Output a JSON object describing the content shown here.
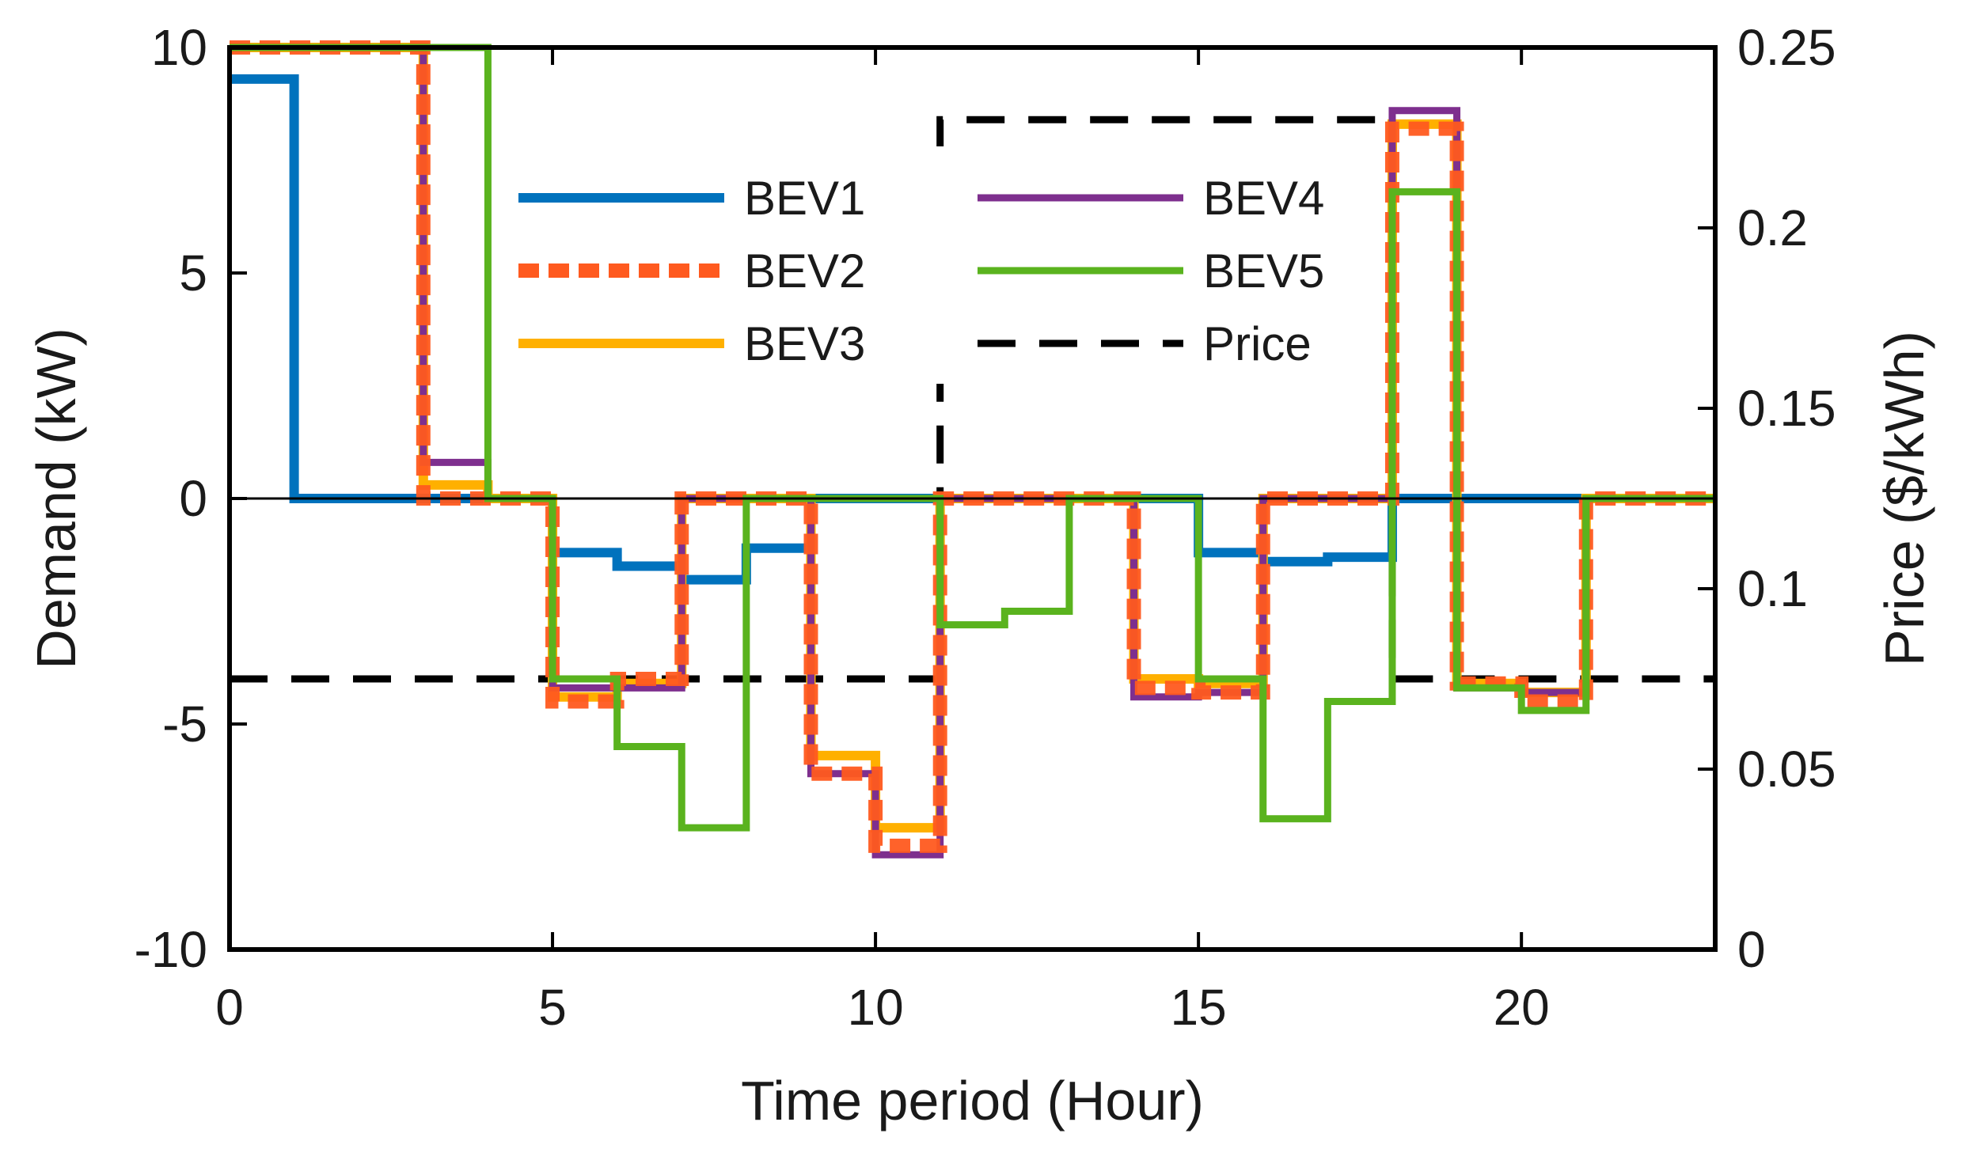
{
  "chart_data": {
    "type": "line",
    "step": true,
    "xlabel": "Time period (Hour)",
    "ylabel": "Demand (kW)",
    "y2label": "Price ($/kWh)",
    "xlim": [
      0,
      23
    ],
    "ylim": [
      -10,
      10
    ],
    "y2lim": [
      0,
      0.25
    ],
    "xticks": [
      0,
      5,
      10,
      15,
      20
    ],
    "yticks": [
      -10,
      -5,
      0,
      5,
      10
    ],
    "y2ticks": [
      0,
      0.05,
      0.1,
      0.15,
      0.2,
      0.25
    ],
    "x": [
      0,
      1,
      2,
      3,
      4,
      5,
      6,
      7,
      8,
      9,
      10,
      11,
      12,
      13,
      14,
      15,
      16,
      17,
      18,
      19,
      20,
      21,
      22
    ],
    "legend_placement": "upper-center, two columns",
    "series": [
      {
        "name": "BEV1",
        "axis": "left",
        "color": "#0072BD",
        "dash": "solid",
        "values": [
          9.3,
          0,
          0,
          0,
          0,
          -1.2,
          -1.5,
          -1.8,
          -1.1,
          0,
          0,
          0,
          0,
          0,
          0,
          -1.2,
          -1.4,
          -1.3,
          0,
          0,
          0,
          0,
          0
        ]
      },
      {
        "name": "BEV2",
        "axis": "left",
        "color": "#FF5A1F",
        "dash": "dotted",
        "values": [
          10,
          10,
          10,
          0,
          0,
          -4.5,
          -4,
          0,
          0,
          -6.1,
          -7.7,
          0,
          0,
          0,
          -4.2,
          -4.3,
          0,
          0,
          8.2,
          -4.1,
          -4.5,
          0,
          0
        ]
      },
      {
        "name": "BEV3",
        "axis": "left",
        "color": "#FFB000",
        "dash": "solid",
        "values": [
          10,
          10,
          10,
          0.3,
          0,
          -4.4,
          -4.1,
          0,
          0,
          -5.7,
          -7.3,
          0,
          0,
          0,
          -4,
          -4.1,
          0,
          0,
          8.3,
          -4.1,
          -4.3,
          0,
          0
        ]
      },
      {
        "name": "BEV4",
        "axis": "left",
        "color": "#7E2F8E",
        "dash": "solid",
        "values": [
          10,
          10,
          10,
          0.8,
          0,
          -4.2,
          -4.2,
          0,
          0,
          -6.1,
          -7.9,
          0,
          0,
          0,
          -4.4,
          -4.3,
          0,
          0,
          8.6,
          -4.2,
          -4.3,
          0,
          0
        ]
      },
      {
        "name": "BEV5",
        "axis": "left",
        "color": "#5AB31E",
        "dash": "solid",
        "values": [
          10,
          10,
          10,
          10,
          0,
          -4,
          -5.5,
          -7.3,
          0,
          0,
          0,
          -2.8,
          -2.5,
          0,
          0,
          -4,
          -7.1,
          -4.5,
          6.8,
          -4.2,
          -4.7,
          0,
          0
        ]
      },
      {
        "name": "Price",
        "axis": "right",
        "color": "#000000",
        "dash": "dashed",
        "values": [
          0.075,
          0.075,
          0.075,
          0.075,
          0.075,
          0.075,
          0.075,
          0.075,
          0.075,
          0.075,
          0.075,
          0.23,
          0.23,
          0.23,
          0.23,
          0.23,
          0.23,
          0.23,
          0.075,
          0.075,
          0.075,
          0.075,
          0.075
        ]
      }
    ]
  }
}
